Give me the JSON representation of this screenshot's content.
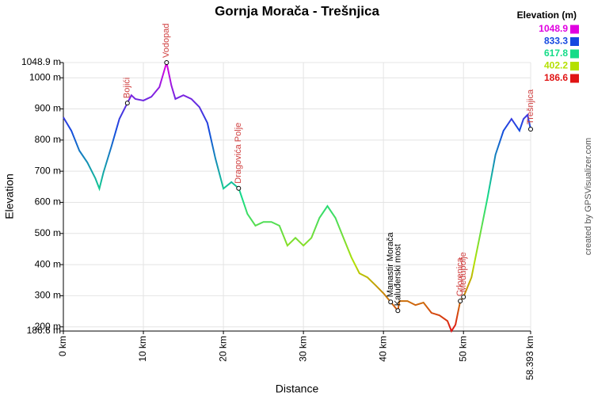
{
  "chart_data": {
    "type": "line",
    "title": "Gornja Morača - Trešnjica",
    "x_label": "Distance",
    "y_label": "Elevation",
    "credit": "created by GPSVisualizer.com",
    "legend_title": "Elevation (m)",
    "colorscale": [
      {
        "value": 1048.9,
        "color": "#e000e0"
      },
      {
        "value": 833.3,
        "color": "#1448e0"
      },
      {
        "value": 617.8,
        "color": "#14dc88"
      },
      {
        "value": 402.2,
        "color": "#b4e000"
      },
      {
        "value": 186.6,
        "color": "#e01414"
      }
    ],
    "grid": true,
    "xlim": [
      0,
      58.393
    ],
    "ylim": [
      186.6,
      1048.9
    ],
    "xticks": [
      {
        "value": 0,
        "label": "0 km"
      },
      {
        "value": 10,
        "label": "10 km"
      },
      {
        "value": 20,
        "label": "20 km"
      },
      {
        "value": 30,
        "label": "30 km"
      },
      {
        "value": 40,
        "label": "40 km"
      },
      {
        "value": 50,
        "label": "50 km"
      },
      {
        "value": 58.393,
        "label": "58.393 km"
      }
    ],
    "yticks": [
      {
        "value": 186.6,
        "label": "186.6 m"
      },
      {
        "value": 200,
        "label": "200 m"
      },
      {
        "value": 300,
        "label": "300 m"
      },
      {
        "value": 400,
        "label": "400 m"
      },
      {
        "value": 500,
        "label": "500 m"
      },
      {
        "value": 600,
        "label": "600 m"
      },
      {
        "value": 700,
        "label": "700 m"
      },
      {
        "value": 800,
        "label": "800 m"
      },
      {
        "value": 900,
        "label": "900 m"
      },
      {
        "value": 1000,
        "label": "1000 m"
      },
      {
        "value": 1048.9,
        "label": "1048.9 m"
      }
    ],
    "series": [
      {
        "name": "Elevation",
        "x": [
          0,
          1,
          2,
          3,
          4,
          4.5,
          5,
          6,
          7,
          8,
          8.5,
          9,
          10,
          11,
          12,
          12.9,
          13.5,
          14,
          15,
          16,
          17,
          18,
          19,
          20,
          21,
          21.9,
          22,
          23,
          24,
          25,
          26,
          27,
          28,
          29,
          30,
          31,
          32,
          33,
          34,
          35,
          36,
          37,
          38,
          39,
          40,
          40.9,
          41.8,
          42,
          43,
          44,
          45,
          46,
          47,
          48,
          48.5,
          49,
          49.6,
          50,
          51,
          52,
          53,
          54,
          55,
          56,
          57,
          57.5,
          58,
          58.393
        ],
        "values": [
          873,
          830,
          766,
          728,
          677,
          644,
          695,
          779,
          868,
          919,
          944,
          932,
          927,
          939,
          970,
          1048.9,
          975,
          932,
          944,
          932,
          906,
          855,
          741,
          644,
          665,
          645,
          639,
          563,
          525,
          537,
          537,
          525,
          461,
          486,
          461,
          486,
          550,
          588,
          550,
          486,
          423,
          372,
          359,
          334,
          308,
          280,
          252,
          283,
          283,
          270,
          278,
          245,
          237,
          219,
          186.6,
          207,
          283,
          296,
          359,
          486,
          614,
          753,
          830,
          868,
          830,
          868,
          881,
          835
        ]
      }
    ],
    "waypoints": [
      {
        "name": "Bojići",
        "x": 8,
        "y": 919,
        "color": "#d04040"
      },
      {
        "name": "Vodopad",
        "x": 12.9,
        "y": 1048.9,
        "color": "#d04040"
      },
      {
        "name": "Dragovića Polje",
        "x": 21.9,
        "y": 645,
        "color": "#d04040"
      },
      {
        "name": "Manastir Morača",
        "x": 40.9,
        "y": 280,
        "color": "#000000"
      },
      {
        "name": "Kaluđerski most",
        "x": 41.8,
        "y": 252,
        "color": "#000000"
      },
      {
        "name": "Crkvenica",
        "x": 49.6,
        "y": 283,
        "color": "#d04040"
      },
      {
        "name": "Međupolje",
        "x": 50,
        "y": 296,
        "color": "#d04040"
      },
      {
        "name": "Trešnjica",
        "x": 58.393,
        "y": 835,
        "color": "#d04040"
      }
    ]
  }
}
